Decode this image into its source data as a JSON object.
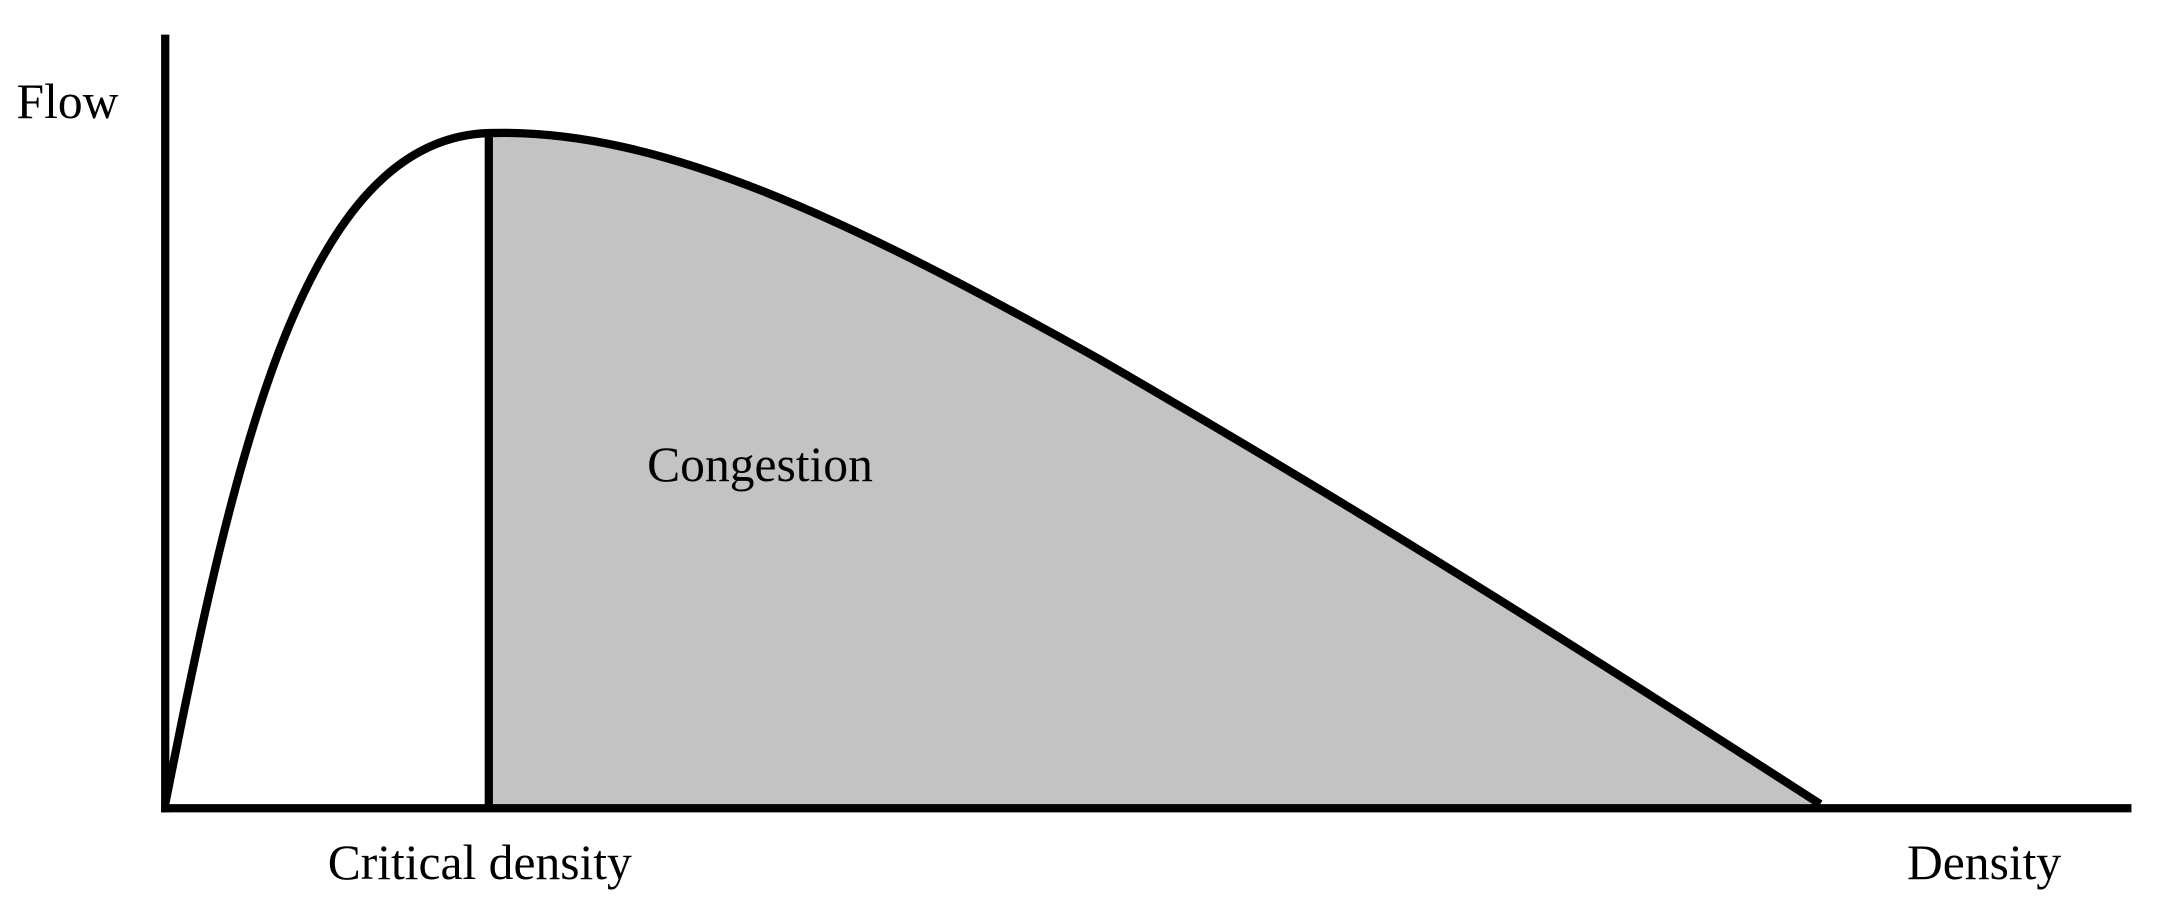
{
  "axes": {
    "y_label": "Flow",
    "x_label": "Density"
  },
  "annotations": {
    "critical": "Critical density",
    "region": "Congestion"
  }
}
